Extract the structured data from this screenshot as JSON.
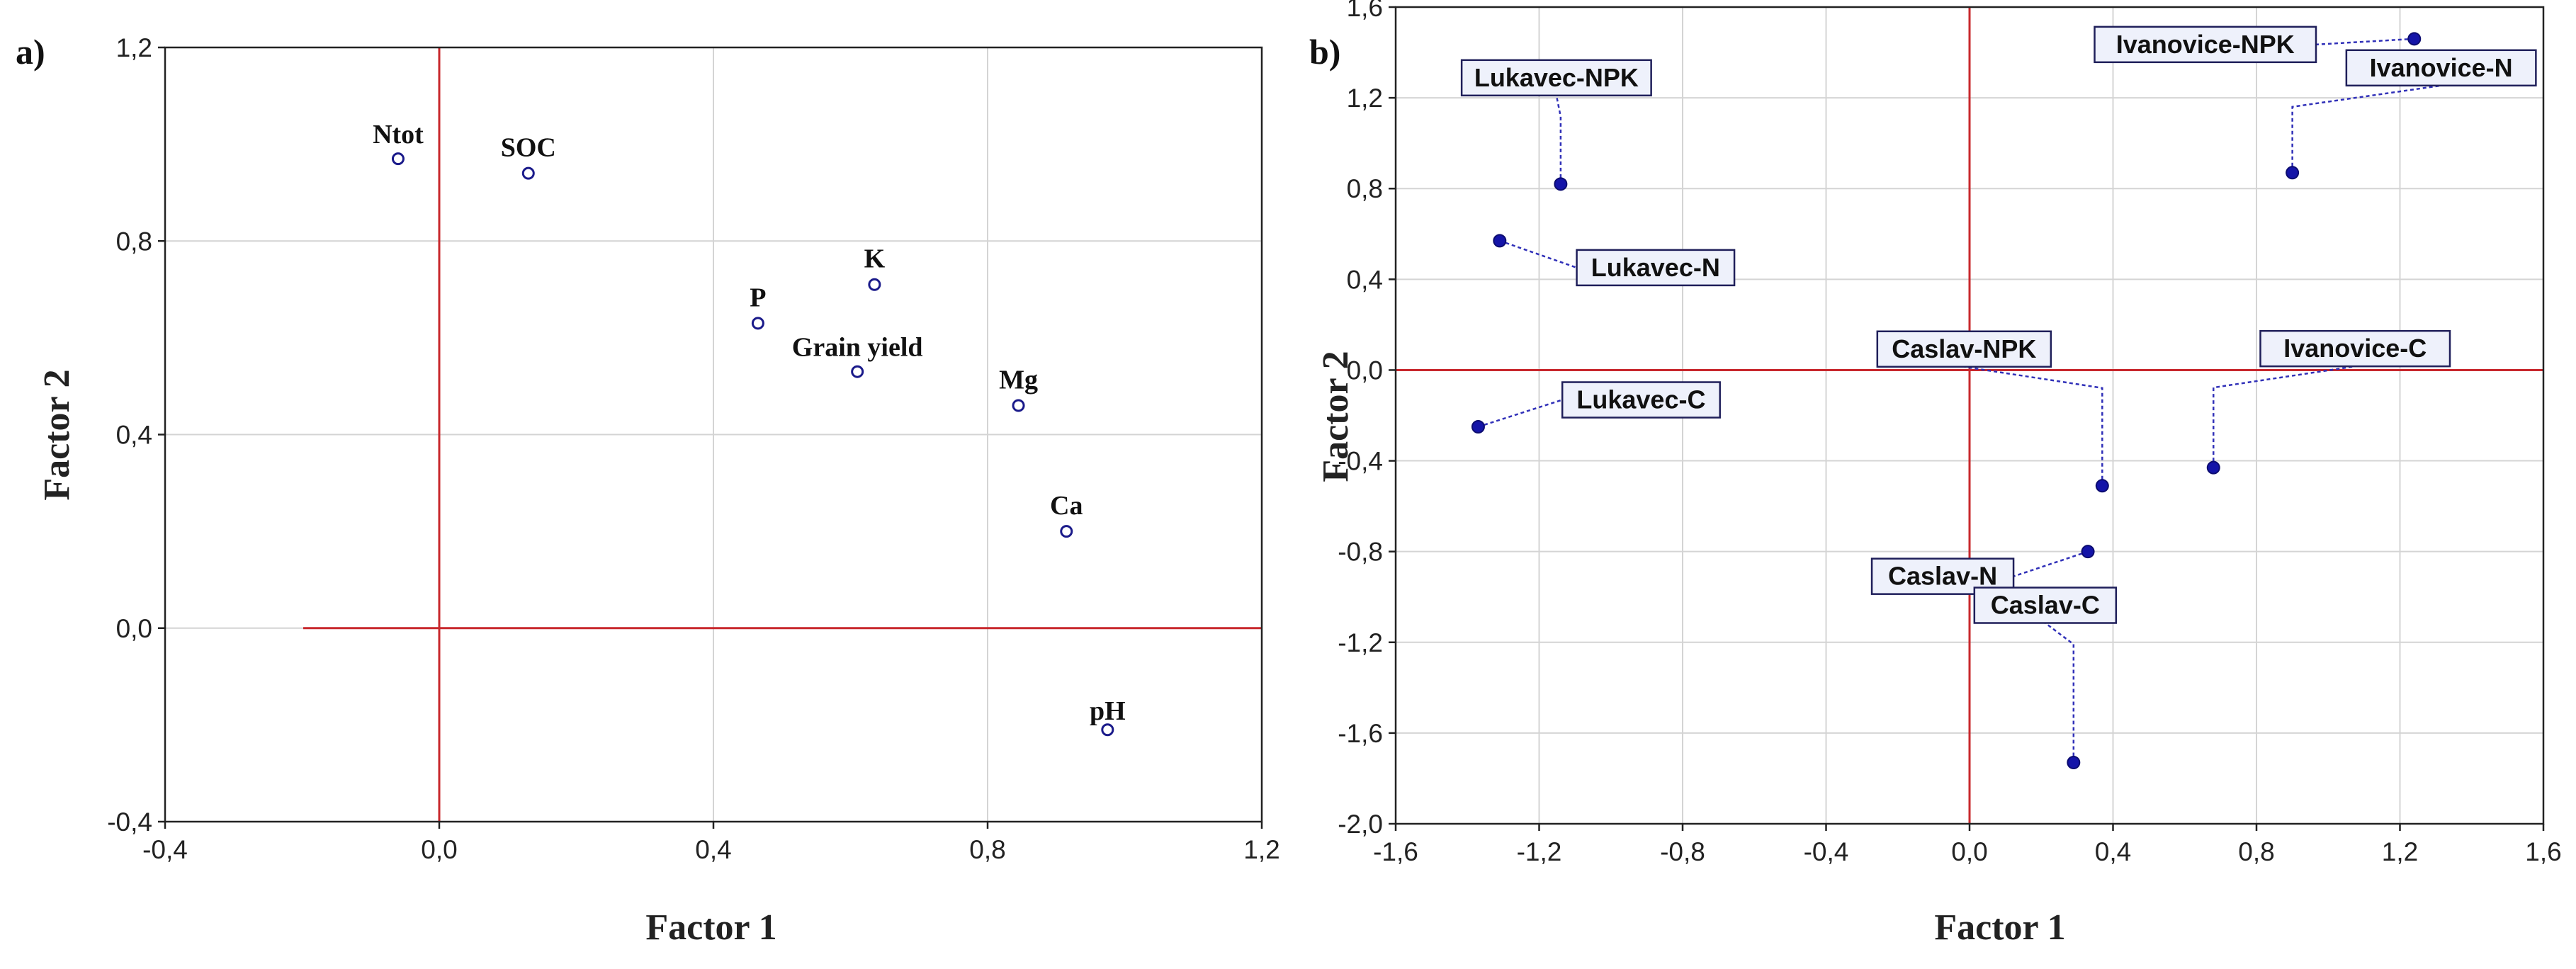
{
  "chart_data": [
    {
      "type": "scatter",
      "panel_label": "a)",
      "xlabel": "Factor 1",
      "ylabel": "Factor 2",
      "xlim": [
        -0.4,
        1.2
      ],
      "ylim": [
        -0.4,
        1.2
      ],
      "xticks": [
        "-0,4",
        "0,0",
        "0,4",
        "0,8",
        "1,2"
      ],
      "yticks": [
        "-0,4",
        "0,0",
        "0,4",
        "0,8",
        "1,2"
      ],
      "grid": true,
      "marker": "open-circle",
      "points": [
        {
          "label": "Ntot",
          "x": -0.06,
          "y": 0.97
        },
        {
          "label": "SOC",
          "x": 0.13,
          "y": 0.94
        },
        {
          "label": "P",
          "x": 0.465,
          "y": 0.63
        },
        {
          "label": "K",
          "x": 0.635,
          "y": 0.71
        },
        {
          "label": "Grain yield",
          "x": 0.61,
          "y": 0.53
        },
        {
          "label": "Mg",
          "x": 0.845,
          "y": 0.46
        },
        {
          "label": "Ca",
          "x": 0.915,
          "y": 0.2
        },
        {
          "label": "pH",
          "x": 0.975,
          "y": -0.21
        }
      ]
    },
    {
      "type": "scatter",
      "panel_label": "b)",
      "xlabel": "Factor 1",
      "ylabel": "Factor 2",
      "xlim": [
        -1.6,
        1.6
      ],
      "ylim": [
        -2.0,
        1.6
      ],
      "xticks": [
        "-1,6",
        "-1,2",
        "-0,8",
        "-0,4",
        "0,0",
        "0,4",
        "0,8",
        "1,2",
        "1,6"
      ],
      "yticks": [
        "-2,0",
        "-1,6",
        "-1,2",
        "-0,8",
        "-0,4",
        "0,0",
        "0,4",
        "0,8",
        "1,2",
        "1,6"
      ],
      "grid": true,
      "marker": "filled-circle",
      "points": [
        {
          "label": "Lukavec-NPK",
          "x": -1.14,
          "y": 0.82
        },
        {
          "label": "Lukavec-N",
          "x": -1.31,
          "y": 0.57
        },
        {
          "label": "Lukavec-C",
          "x": -1.37,
          "y": -0.25
        },
        {
          "label": "Ivanovice-NPK",
          "x": 1.24,
          "y": 1.46
        },
        {
          "label": "Ivanovice-N",
          "x": 0.9,
          "y": 0.87
        },
        {
          "label": "Ivanovice-C",
          "x": 0.68,
          "y": -0.43
        },
        {
          "label": "Caslav-NPK",
          "x": 0.37,
          "y": -0.51
        },
        {
          "label": "Caslav-N",
          "x": 0.33,
          "y": -0.8
        },
        {
          "label": "Caslav-C",
          "x": 0.29,
          "y": -1.73
        }
      ]
    }
  ]
}
